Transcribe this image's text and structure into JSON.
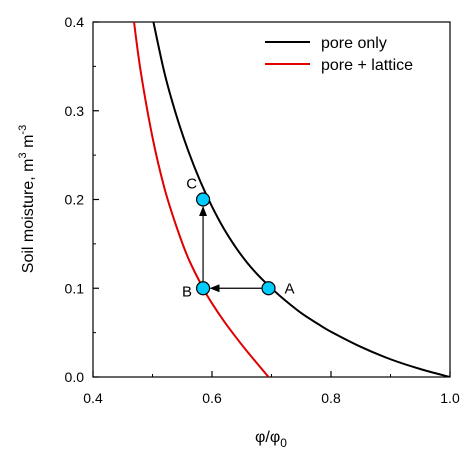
{
  "chart_data": {
    "type": "line",
    "title": "",
    "xlabel": {
      "main": "φ/φ",
      "sub": "0"
    },
    "ylabel": {
      "prefix": "Soil moisture, m",
      "sup1": "3",
      "mid": " m",
      "sup2": "-3"
    },
    "xlim": [
      0.4,
      1.0
    ],
    "ylim": [
      0.0,
      0.4
    ],
    "xticks": [
      0.4,
      0.6,
      0.8,
      1.0
    ],
    "xtick_labels": [
      "0.4",
      "0.6",
      "0.8",
      "1.0"
    ],
    "yticks": [
      0.0,
      0.1,
      0.2,
      0.3,
      0.4
    ],
    "ytick_labels": [
      "0.0",
      "0.1",
      "0.2",
      "0.3",
      "0.4"
    ],
    "grid": false,
    "legend_position": "top-right",
    "series": [
      {
        "name": "pore only",
        "color": "#000000",
        "x": [
          0.5,
          0.52,
          0.54,
          0.56,
          0.58,
          0.6,
          0.62,
          0.64,
          0.66,
          0.68,
          0.7,
          0.72,
          0.75,
          0.78,
          0.8,
          0.85,
          0.9,
          0.95,
          1.0
        ],
        "y": [
          0.405,
          0.343,
          0.295,
          0.255,
          0.221,
          0.192,
          0.167,
          0.146,
          0.128,
          0.113,
          0.1,
          0.088,
          0.072,
          0.059,
          0.051,
          0.034,
          0.02,
          0.009,
          0.0
        ]
      },
      {
        "name": "pore + lattice",
        "color": "#e00000",
        "x": [
          0.468,
          0.48,
          0.5,
          0.52,
          0.54,
          0.56,
          0.585,
          0.6,
          0.62,
          0.64,
          0.66,
          0.68,
          0.695
        ],
        "y": [
          0.405,
          0.345,
          0.27,
          0.213,
          0.17,
          0.134,
          0.1,
          0.083,
          0.063,
          0.045,
          0.028,
          0.012,
          0.0
        ]
      }
    ],
    "points": [
      {
        "label": "A",
        "x": 0.695,
        "y": 0.1
      },
      {
        "label": "B",
        "x": 0.585,
        "y": 0.1
      },
      {
        "label": "C",
        "x": 0.585,
        "y": 0.2
      }
    ],
    "arrows": [
      {
        "from": "A",
        "to": "B"
      },
      {
        "from": "B",
        "to": "C"
      }
    ],
    "marker_fill": "#00ccff"
  }
}
